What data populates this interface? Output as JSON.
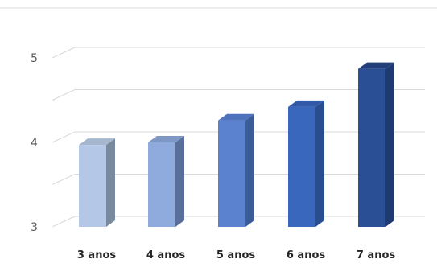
{
  "chart_data": {
    "type": "bar",
    "style": "3d-column",
    "categories": [
      "3 anos",
      "4 anos",
      "5 anos",
      "6 anos",
      "7 anos"
    ],
    "values": [
      3.97,
      4.0,
      4.26,
      4.42,
      4.87
    ],
    "ylim": [
      3,
      5
    ],
    "yticks": [
      3,
      4,
      5
    ],
    "grid": true,
    "colors": [
      "#B4C7E7",
      "#8FAADC",
      "#5B82CF",
      "#3A67BE",
      "#2A4F95"
    ],
    "side_colors": [
      "#7A8A9E",
      "#596E9A",
      "#3C5B99",
      "#2A4D90",
      "#1E3A70"
    ],
    "top_colors": [
      "#A6B6CE",
      "#7E98C6",
      "#4F72BD",
      "#3259A8",
      "#223F7C"
    ]
  }
}
